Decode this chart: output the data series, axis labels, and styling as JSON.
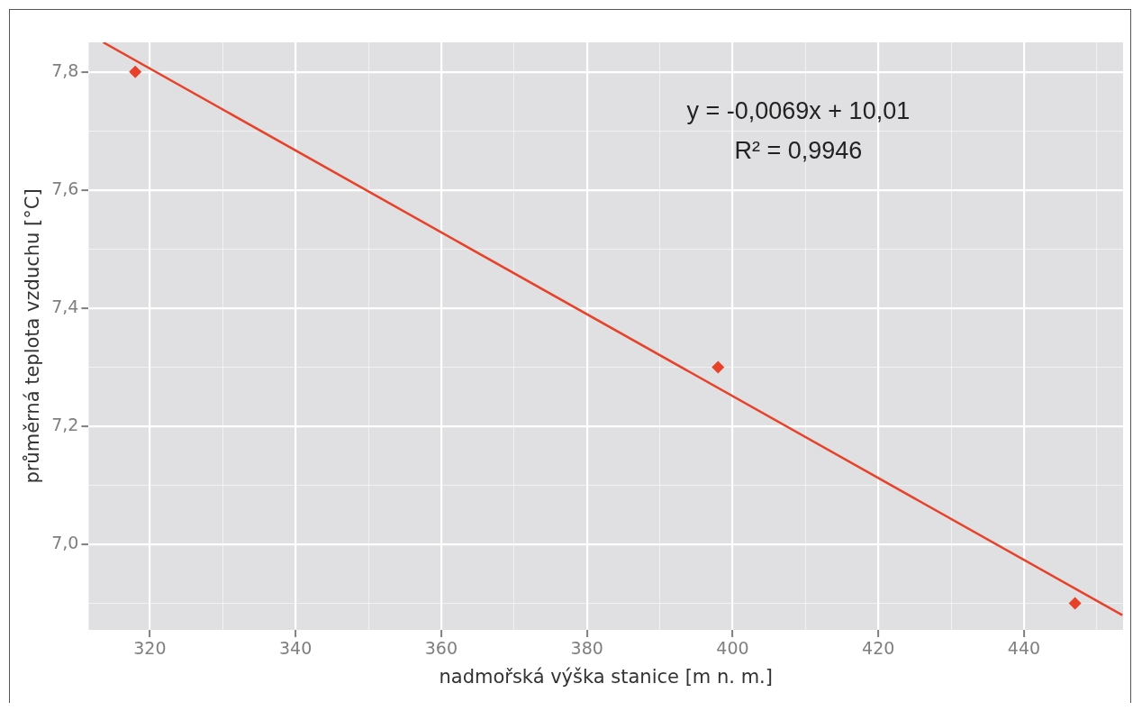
{
  "chart_data": {
    "type": "scatter",
    "xlabel": "nadmořská výška stanice [m n. m.]",
    "ylabel": "průměrná teplota vzduchu [°C]",
    "annotations": [
      "y = -0,0069x + 10,01",
      "R² = 0,9946"
    ],
    "series": [
      {
        "color": "#e8412a",
        "marker": "diamond",
        "x": [
          318,
          398,
          447
        ],
        "values": [
          7.8,
          7.3,
          6.9
        ]
      },
      {
        "type": "line",
        "color": "#e8412a",
        "marker": "none",
        "line_style": "solid",
        "x": [
          313.6,
          453.5
        ],
        "values": [
          7.85,
          6.88
        ]
      }
    ],
    "xlim": [
      311.6,
      453.6
    ],
    "ylim": [
      6.855,
      7.85
    ],
    "xticks": [
      320,
      {
        "value": 330,
        "label": null
      },
      340,
      {
        "value": 350,
        "label": null
      },
      360,
      {
        "value": 370,
        "label": null
      },
      380,
      {
        "value": 390,
        "label": null
      },
      400,
      {
        "value": 410,
        "label": null
      },
      420,
      {
        "value": 430,
        "label": null
      },
      440,
      {
        "value": 450,
        "label": null
      }
    ],
    "yticks": [
      {
        "value": 6.9,
        "label": null
      },
      {
        "value": 7.0,
        "label": "7,0"
      },
      {
        "value": 7.1,
        "label": null
      },
      {
        "value": 7.2,
        "label": "7,2"
      },
      {
        "value": 7.3,
        "label": null
      },
      {
        "value": 7.4,
        "label": "7,4"
      },
      {
        "value": 7.5,
        "label": null
      },
      {
        "value": 7.6,
        "label": "7,6"
      },
      {
        "value": 7.7,
        "label": null
      },
      {
        "value": 7.8,
        "label": "7,8"
      }
    ],
    "grid": true,
    "legend": false
  }
}
